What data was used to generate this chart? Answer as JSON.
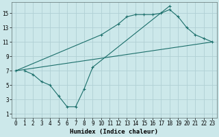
{
  "title": "",
  "xlabel": "Humidex (Indice chaleur)",
  "ylabel": "",
  "bg_color": "#cce8ea",
  "grid_color": "#b0d0d4",
  "line_color": "#1a6e6a",
  "xlim": [
    -0.5,
    23.5
  ],
  "ylim": [
    0.5,
    16.5
  ],
  "xticks": [
    0,
    1,
    2,
    3,
    4,
    5,
    6,
    7,
    8,
    9,
    10,
    11,
    12,
    13,
    14,
    15,
    16,
    17,
    18,
    19,
    20,
    21,
    22,
    23
  ],
  "yticks": [
    1,
    3,
    5,
    7,
    9,
    11,
    13,
    15
  ],
  "line1_x": [
    1,
    2,
    3,
    4,
    5,
    6,
    7,
    8,
    9,
    18
  ],
  "line1_y": [
    7,
    6.5,
    5.5,
    5,
    3.5,
    2,
    2,
    4.5,
    7.5,
    16
  ],
  "line2_x": [
    0,
    10,
    12,
    13,
    14,
    15,
    16,
    17,
    18,
    19,
    20,
    21,
    22,
    23
  ],
  "line2_y": [
    7,
    12,
    13.5,
    14.5,
    14.8,
    14.8,
    14.8,
    15,
    15.5,
    14.5,
    13,
    12,
    11.5,
    11
  ],
  "line3_x": [
    0,
    23
  ],
  "line3_y": [
    7,
    11
  ]
}
